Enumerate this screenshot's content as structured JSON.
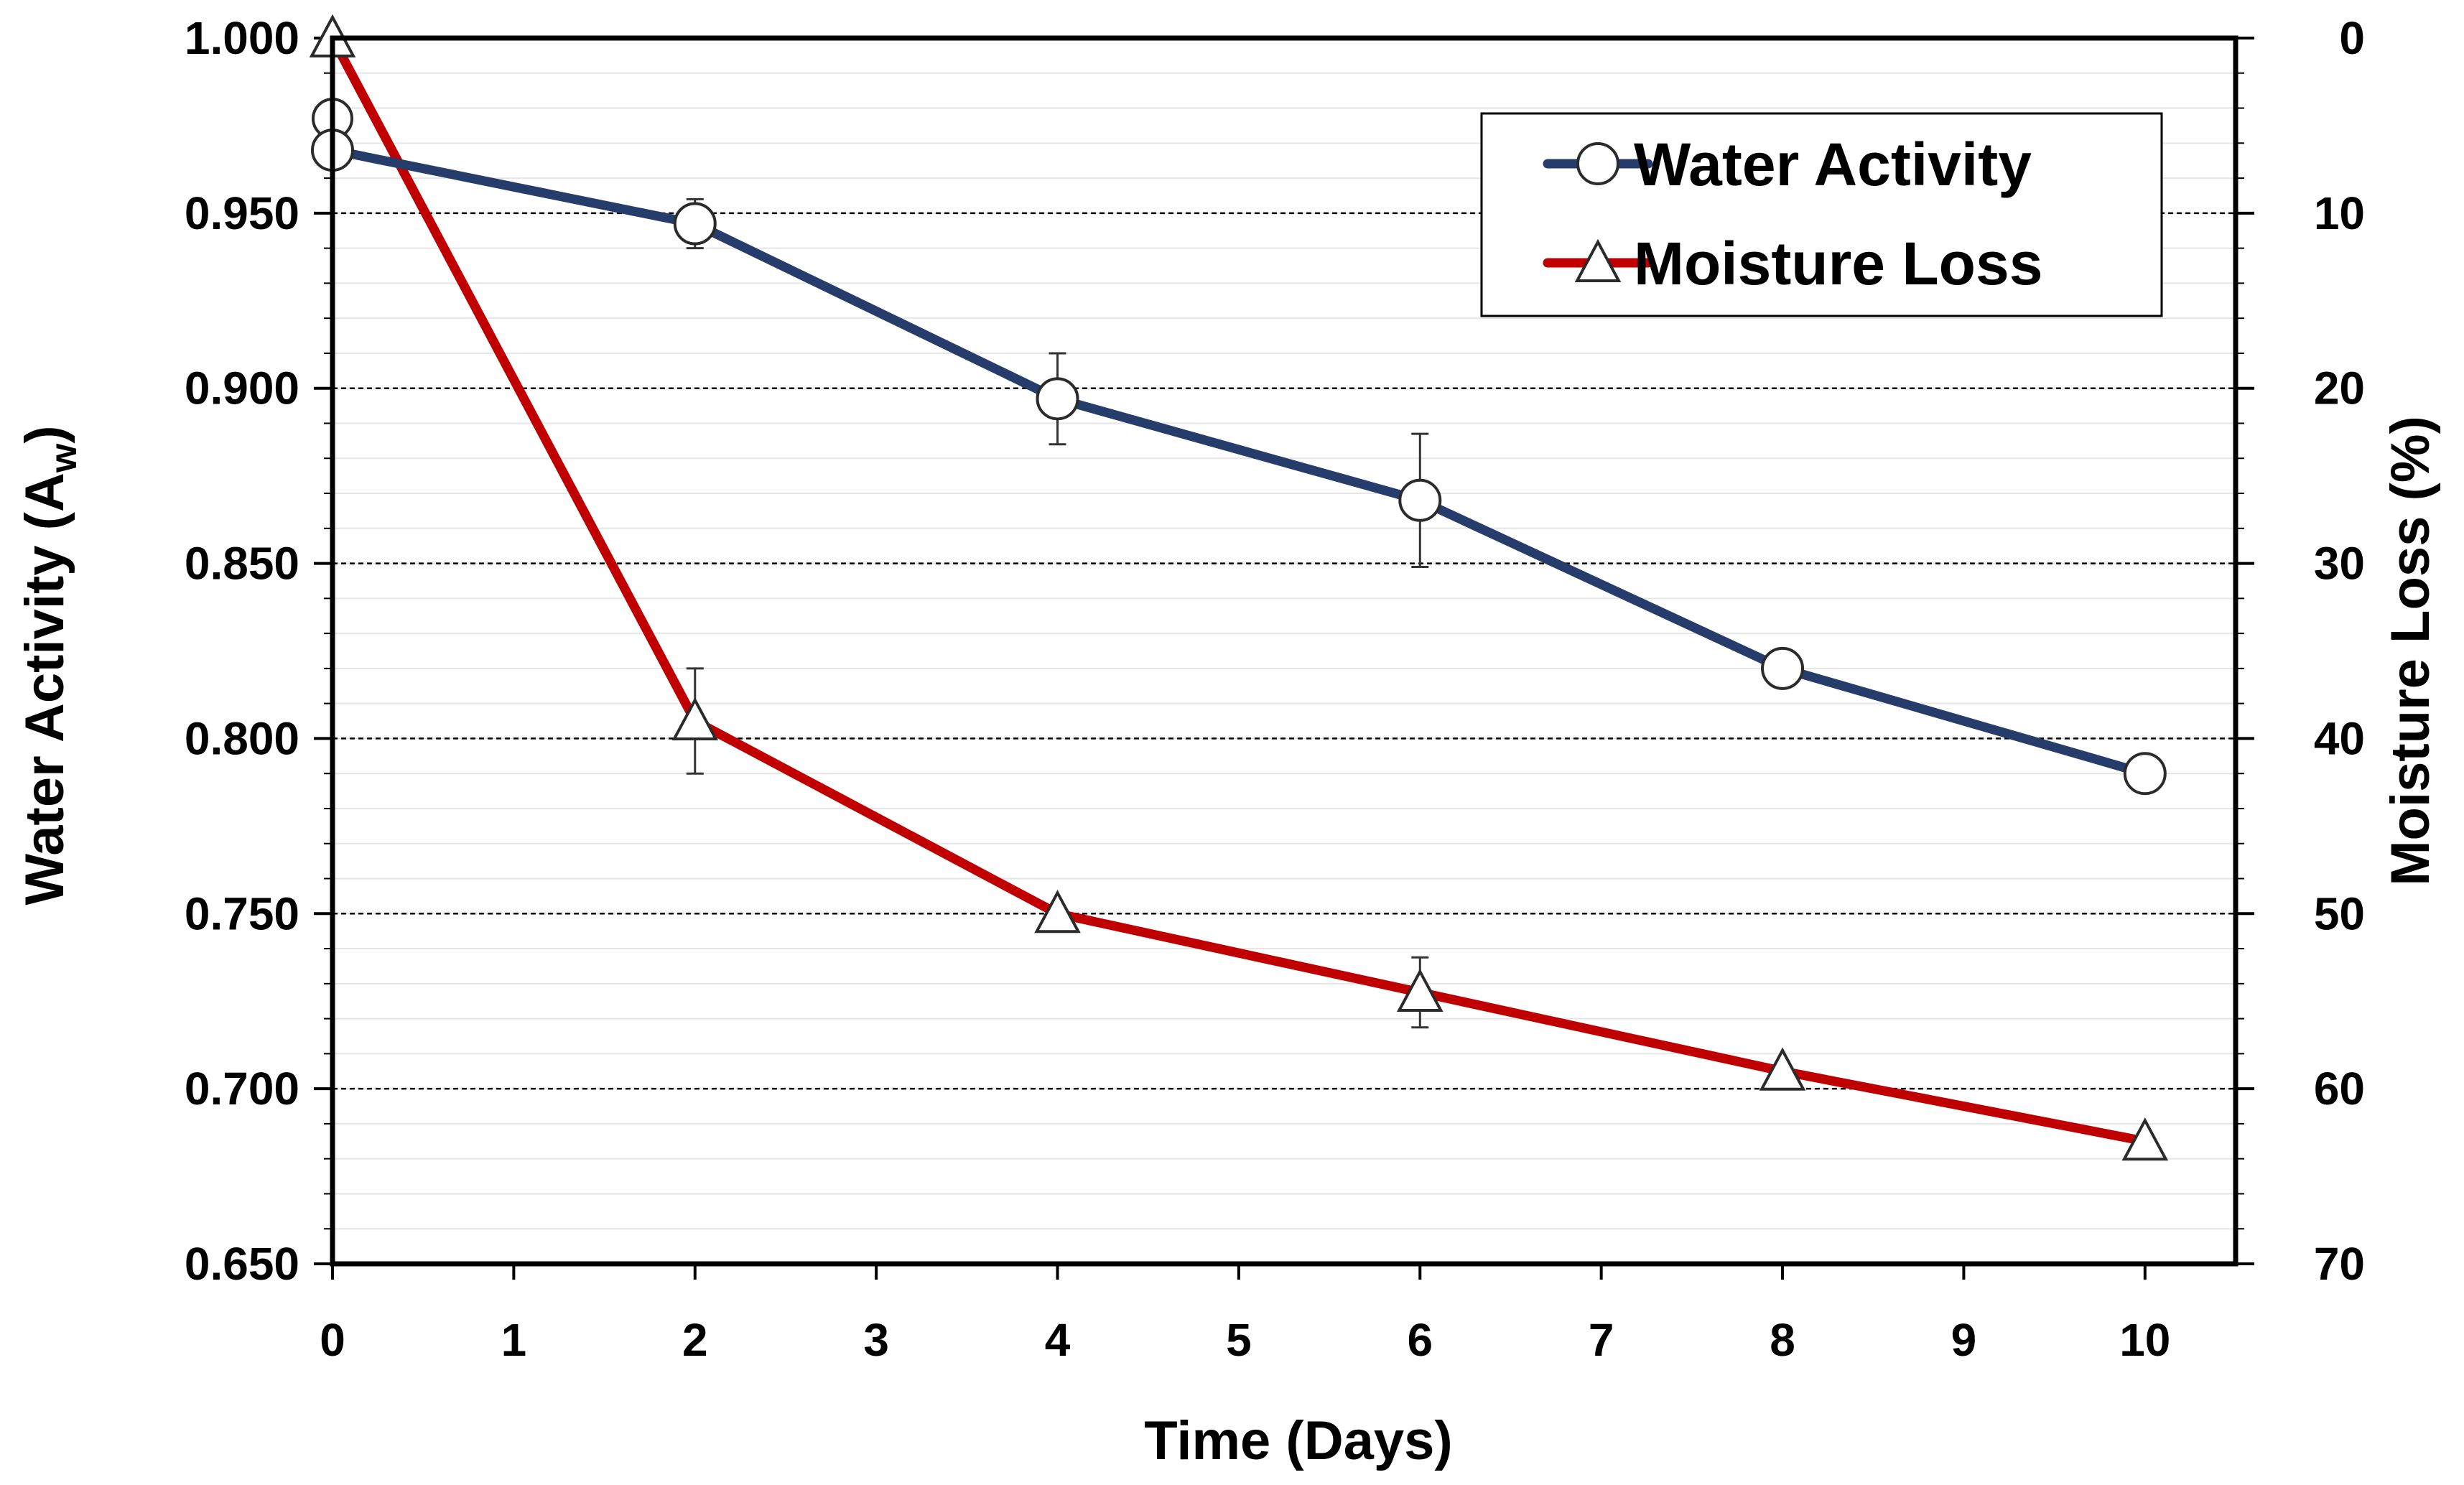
{
  "chart_data": {
    "type": "line",
    "title": "",
    "xlabel": "Time (Days)",
    "ylabel": "Water Activity (A",
    "ylabel_subscript": "w",
    "ylabel_close": ")",
    "y2label": "Moisture Loss (%)",
    "xlim": [
      0,
      10.5
    ],
    "ylim": [
      0.65,
      1.0
    ],
    "y2lim": [
      0,
      70
    ],
    "y2_inverted": true,
    "x_ticks": [
      0,
      1,
      2,
      3,
      4,
      5,
      6,
      7,
      8,
      9,
      10
    ],
    "x_tick_labels": [
      "0",
      "1",
      "2",
      "3",
      "4",
      "5",
      "6",
      "7",
      "8",
      "9",
      "10"
    ],
    "y_ticks": [
      0.65,
      0.7,
      0.75,
      0.8,
      0.85,
      0.9,
      0.95,
      1.0
    ],
    "y_tick_labels": [
      "0.650",
      "0.700",
      "0.750",
      "0.800",
      "0.850",
      "0.900",
      "0.950",
      "1.000"
    ],
    "y2_ticks": [
      0,
      10,
      20,
      30,
      40,
      50,
      60,
      70
    ],
    "y2_tick_labels": [
      "0",
      "10",
      "20",
      "30",
      "40",
      "50",
      "60",
      "70"
    ],
    "major_gridlines": [
      0.7,
      0.75,
      0.8,
      0.85,
      0.9,
      0.95
    ],
    "legend_position": "top-right",
    "series": [
      {
        "name": "Water Activity",
        "axis": "left",
        "color": "#263d6b",
        "marker": "circle",
        "x": [
          0,
          2,
          4,
          6,
          8,
          10
        ],
        "values": [
          0.968,
          0.947,
          0.897,
          0.868,
          0.82,
          0.79
        ],
        "error": [
          0.0,
          0.007,
          0.013,
          0.019,
          0.0,
          0.0
        ],
        "extra_points": [
          {
            "x": 0,
            "value": 0.977
          }
        ]
      },
      {
        "name": "Moisture Loss",
        "axis": "right",
        "color": "#c00000",
        "marker": "triangle",
        "x": [
          0,
          2,
          4,
          6,
          8,
          10
        ],
        "values": [
          0,
          39,
          50,
          54.5,
          59,
          63
        ],
        "error": [
          0.0,
          3.0,
          0.0,
          2.0,
          0.0,
          0.0
        ]
      }
    ]
  }
}
